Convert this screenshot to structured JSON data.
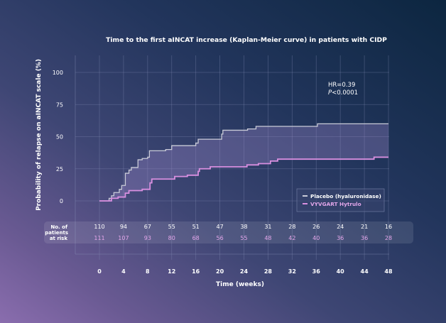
{
  "chart_data": {
    "type": "line",
    "subtype": "kaplan-meier step",
    "title": "Time to the first aINCAT increase (Kaplan-Meier curve) in patients with CIDP",
    "xlabel": "Time (weeks)",
    "ylabel": "Probability of relapse on aINCAT scale (%)",
    "xlim": [
      0,
      48
    ],
    "ylim": [
      0,
      100
    ],
    "x_ticks": [
      0,
      4,
      8,
      12,
      16,
      20,
      24,
      28,
      32,
      36,
      40,
      44,
      48
    ],
    "y_ticks": [
      0,
      25,
      50,
      75,
      100
    ],
    "grid": true,
    "legend_position": "bottom-right",
    "annotation": {
      "hr": "HR=0.39",
      "p_prefix": "P",
      "p_rest": "<0.0001"
    },
    "series": [
      {
        "name": "Placebo (hyaluronidase)",
        "color": "#c9cbd8",
        "steps": [
          [
            0,
            0
          ],
          [
            1.6,
            2
          ],
          [
            2,
            4
          ],
          [
            2.4,
            6.5
          ],
          [
            3.3,
            9
          ],
          [
            3.7,
            12
          ],
          [
            4.3,
            21.5
          ],
          [
            4.9,
            24
          ],
          [
            5.3,
            26
          ],
          [
            6.4,
            32
          ],
          [
            7.1,
            33
          ],
          [
            8.0,
            34
          ],
          [
            8.3,
            39
          ],
          [
            11.0,
            40
          ],
          [
            12.0,
            43
          ],
          [
            16.0,
            45
          ],
          [
            16.4,
            48
          ],
          [
            20.3,
            52
          ],
          [
            20.5,
            55
          ],
          [
            24.6,
            56
          ],
          [
            26.0,
            58
          ],
          [
            36.2,
            60
          ],
          [
            48,
            60
          ]
        ]
      },
      {
        "name": "VYVGART Hytrulo",
        "color": "#d98fe0",
        "steps": [
          [
            0,
            0
          ],
          [
            1.6,
            0
          ],
          [
            2.0,
            2
          ],
          [
            3.1,
            3
          ],
          [
            4.3,
            6
          ],
          [
            4.9,
            8
          ],
          [
            7.1,
            9
          ],
          [
            8.4,
            14
          ],
          [
            8.7,
            17
          ],
          [
            12.5,
            19
          ],
          [
            14.6,
            20
          ],
          [
            16.4,
            23
          ],
          [
            16.6,
            25
          ],
          [
            18.4,
            26.5
          ],
          [
            24.5,
            28
          ],
          [
            26.4,
            29
          ],
          [
            28.4,
            31
          ],
          [
            29.6,
            32.5
          ],
          [
            45.6,
            34
          ],
          [
            48,
            34
          ]
        ]
      }
    ],
    "risk_table": {
      "label_lines": [
        "No. of",
        "patients",
        "at risk"
      ],
      "placebo": [
        110,
        94,
        67,
        55,
        51,
        47,
        38,
        31,
        28,
        26,
        24,
        21,
        16
      ],
      "vyvgart": [
        111,
        107,
        93,
        80,
        68,
        56,
        55,
        48,
        42,
        40,
        36,
        36,
        28
      ]
    }
  }
}
